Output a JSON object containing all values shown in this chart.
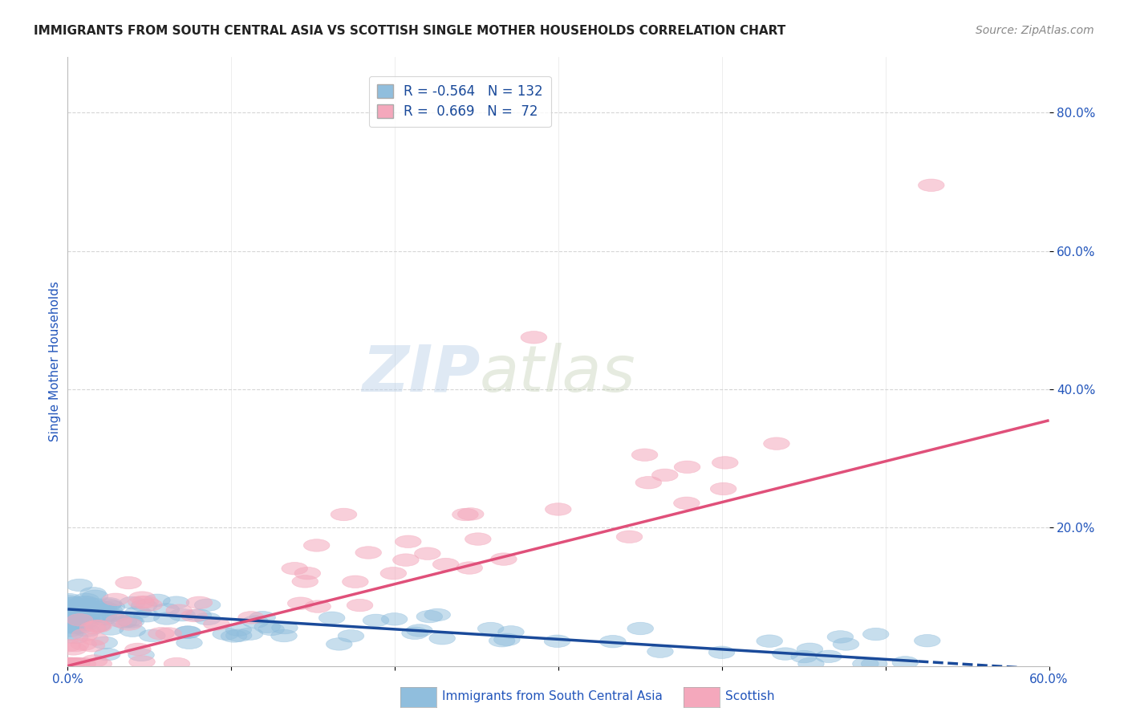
{
  "title": "IMMIGRANTS FROM SOUTH CENTRAL ASIA VS SCOTTISH SINGLE MOTHER HOUSEHOLDS CORRELATION CHART",
  "source": "Source: ZipAtlas.com",
  "ylabel": "Single Mother Households",
  "xlim": [
    0.0,
    0.6
  ],
  "ylim": [
    0.0,
    0.88
  ],
  "xtick_positions": [
    0.0,
    0.1,
    0.2,
    0.3,
    0.4,
    0.5,
    0.6
  ],
  "xtick_labels": [
    "0.0%",
    "",
    "",
    "",
    "",
    "",
    "60.0%"
  ],
  "ytick_labels": [
    "20.0%",
    "40.0%",
    "60.0%",
    "80.0%"
  ],
  "ytick_positions": [
    0.2,
    0.4,
    0.6,
    0.8
  ],
  "blue_color": "#90bedd",
  "pink_color": "#f4a8bc",
  "blue_line_color": "#1a4a9a",
  "pink_line_color": "#e0507a",
  "blue_R": -0.564,
  "blue_N": 132,
  "pink_R": 0.669,
  "pink_N": 72,
  "background_color": "#ffffff",
  "grid_color": "#cccccc",
  "title_color": "#222222",
  "axis_label_color": "#2255bb",
  "tick_label_color": "#2255bb",
  "source_color": "#888888",
  "blue_line_start_y": 0.082,
  "blue_line_end_y": -0.005,
  "pink_line_start_y": 0.0,
  "pink_line_end_y": 0.355
}
